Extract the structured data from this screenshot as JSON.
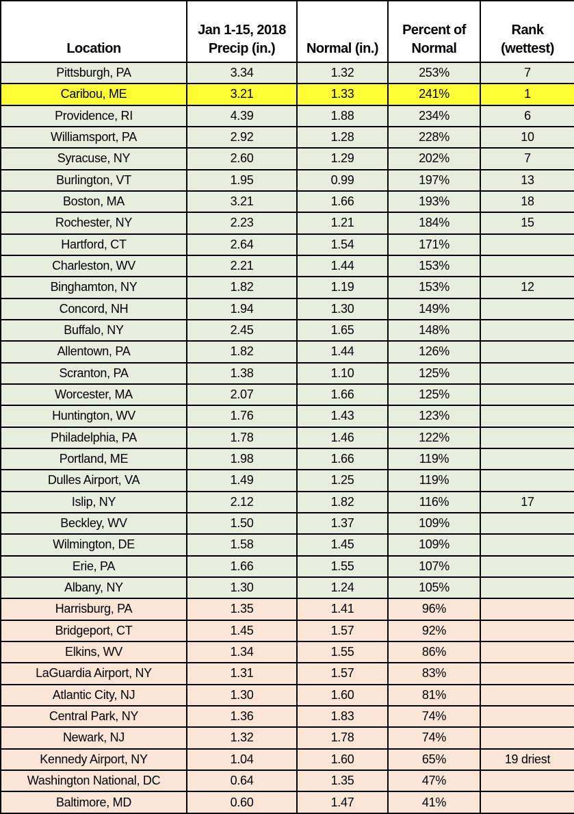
{
  "chart_data": {
    "type": "table",
    "title": "Jan 1-15, 2018 precipitation vs normal by location",
    "columns": [
      {
        "line1": "",
        "line2": "Location"
      },
      {
        "line1": "Jan 1-15, 2018",
        "line2": "Precip (in.)"
      },
      {
        "line1": "",
        "line2": "Normal (in.)"
      },
      {
        "line1": "Percent of",
        "line2": "Normal"
      },
      {
        "line1": "Rank",
        "line2": "(wettest)"
      }
    ],
    "rows": [
      {
        "location": "Pittsburgh, PA",
        "precip": "3.34",
        "normal": "1.32",
        "percent": "253%",
        "rank": "7",
        "tone": "above_normal"
      },
      {
        "location": "Caribou, ME",
        "precip": "3.21",
        "normal": "1.33",
        "percent": "241%",
        "rank": "1",
        "tone": "record_wettest"
      },
      {
        "location": "Providence, RI",
        "precip": "4.39",
        "normal": "1.88",
        "percent": "234%",
        "rank": "6",
        "tone": "above_normal"
      },
      {
        "location": "Williamsport, PA",
        "precip": "2.92",
        "normal": "1.28",
        "percent": "228%",
        "rank": "10",
        "tone": "above_normal"
      },
      {
        "location": "Syracuse, NY",
        "precip": "2.60",
        "normal": "1.29",
        "percent": "202%",
        "rank": "7",
        "tone": "above_normal"
      },
      {
        "location": "Burlington, VT",
        "precip": "1.95",
        "normal": "0.99",
        "percent": "197%",
        "rank": "13",
        "tone": "above_normal"
      },
      {
        "location": "Boston, MA",
        "precip": "3.21",
        "normal": "1.66",
        "percent": "193%",
        "rank": "18",
        "tone": "above_normal"
      },
      {
        "location": "Rochester, NY",
        "precip": "2.23",
        "normal": "1.21",
        "percent": "184%",
        "rank": "15",
        "tone": "above_normal"
      },
      {
        "location": "Hartford, CT",
        "precip": "2.64",
        "normal": "1.54",
        "percent": "171%",
        "rank": "",
        "tone": "above_normal"
      },
      {
        "location": "Charleston, WV",
        "precip": "2.21",
        "normal": "1.44",
        "percent": "153%",
        "rank": "",
        "tone": "above_normal"
      },
      {
        "location": "Binghamton, NY",
        "precip": "1.82",
        "normal": "1.19",
        "percent": "153%",
        "rank": "12",
        "tone": "above_normal"
      },
      {
        "location": "Concord, NH",
        "precip": "1.94",
        "normal": "1.30",
        "percent": "149%",
        "rank": "",
        "tone": "above_normal"
      },
      {
        "location": "Buffalo, NY",
        "precip": "2.45",
        "normal": "1.65",
        "percent": "148%",
        "rank": "",
        "tone": "above_normal"
      },
      {
        "location": "Allentown, PA",
        "precip": "1.82",
        "normal": "1.44",
        "percent": "126%",
        "rank": "",
        "tone": "above_normal"
      },
      {
        "location": "Scranton, PA",
        "precip": "1.38",
        "normal": "1.10",
        "percent": "125%",
        "rank": "",
        "tone": "above_normal"
      },
      {
        "location": "Worcester, MA",
        "precip": "2.07",
        "normal": "1.66",
        "percent": "125%",
        "rank": "",
        "tone": "above_normal"
      },
      {
        "location": "Huntington, WV",
        "precip": "1.76",
        "normal": "1.43",
        "percent": "123%",
        "rank": "",
        "tone": "above_normal"
      },
      {
        "location": "Philadelphia, PA",
        "precip": "1.78",
        "normal": "1.46",
        "percent": "122%",
        "rank": "",
        "tone": "above_normal"
      },
      {
        "location": "Portland, ME",
        "precip": "1.98",
        "normal": "1.66",
        "percent": "119%",
        "rank": "",
        "tone": "above_normal"
      },
      {
        "location": "Dulles Airport, VA",
        "precip": "1.49",
        "normal": "1.25",
        "percent": "119%",
        "rank": "",
        "tone": "above_normal"
      },
      {
        "location": "Islip, NY",
        "precip": "2.12",
        "normal": "1.82",
        "percent": "116%",
        "rank": "17",
        "tone": "above_normal"
      },
      {
        "location": "Beckley, WV",
        "precip": "1.50",
        "normal": "1.37",
        "percent": "109%",
        "rank": "",
        "tone": "above_normal"
      },
      {
        "location": "Wilmington, DE",
        "precip": "1.58",
        "normal": "1.45",
        "percent": "109%",
        "rank": "",
        "tone": "above_normal"
      },
      {
        "location": "Erie, PA",
        "precip": "1.66",
        "normal": "1.55",
        "percent": "107%",
        "rank": "",
        "tone": "above_normal"
      },
      {
        "location": "Albany, NY",
        "precip": "1.30",
        "normal": "1.24",
        "percent": "105%",
        "rank": "",
        "tone": "above_normal"
      },
      {
        "location": "Harrisburg, PA",
        "precip": "1.35",
        "normal": "1.41",
        "percent": "96%",
        "rank": "",
        "tone": "below_normal"
      },
      {
        "location": "Bridgeport, CT",
        "precip": "1.45",
        "normal": "1.57",
        "percent": "92%",
        "rank": "",
        "tone": "below_normal"
      },
      {
        "location": "Elkins, WV",
        "precip": "1.34",
        "normal": "1.55",
        "percent": "86%",
        "rank": "",
        "tone": "below_normal"
      },
      {
        "location": "LaGuardia Airport, NY",
        "precip": "1.31",
        "normal": "1.57",
        "percent": "83%",
        "rank": "",
        "tone": "below_normal"
      },
      {
        "location": "Atlantic City, NJ",
        "precip": "1.30",
        "normal": "1.60",
        "percent": "81%",
        "rank": "",
        "tone": "below_normal"
      },
      {
        "location": "Central Park, NY",
        "precip": "1.36",
        "normal": "1.83",
        "percent": "74%",
        "rank": "",
        "tone": "below_normal"
      },
      {
        "location": "Newark, NJ",
        "precip": "1.32",
        "normal": "1.78",
        "percent": "74%",
        "rank": "",
        "tone": "below_normal"
      },
      {
        "location": "Kennedy Airport, NY",
        "precip": "1.04",
        "normal": "1.60",
        "percent": "65%",
        "rank": "19 driest",
        "tone": "below_normal"
      },
      {
        "location": "Washington National, DC",
        "precip": "0.64",
        "normal": "1.35",
        "percent": "47%",
        "rank": "",
        "tone": "below_normal"
      },
      {
        "location": "Baltimore, MD",
        "precip": "0.60",
        "normal": "1.47",
        "percent": "41%",
        "rank": "",
        "tone": "below_normal"
      }
    ]
  },
  "colors": {
    "above_normal": "#E9EDDE",
    "below_normal": "#FBE5D6",
    "record_wettest": "#FFFF33",
    "header_bg": "#FFFFFF",
    "border": "#000000",
    "text": "#000000"
  }
}
